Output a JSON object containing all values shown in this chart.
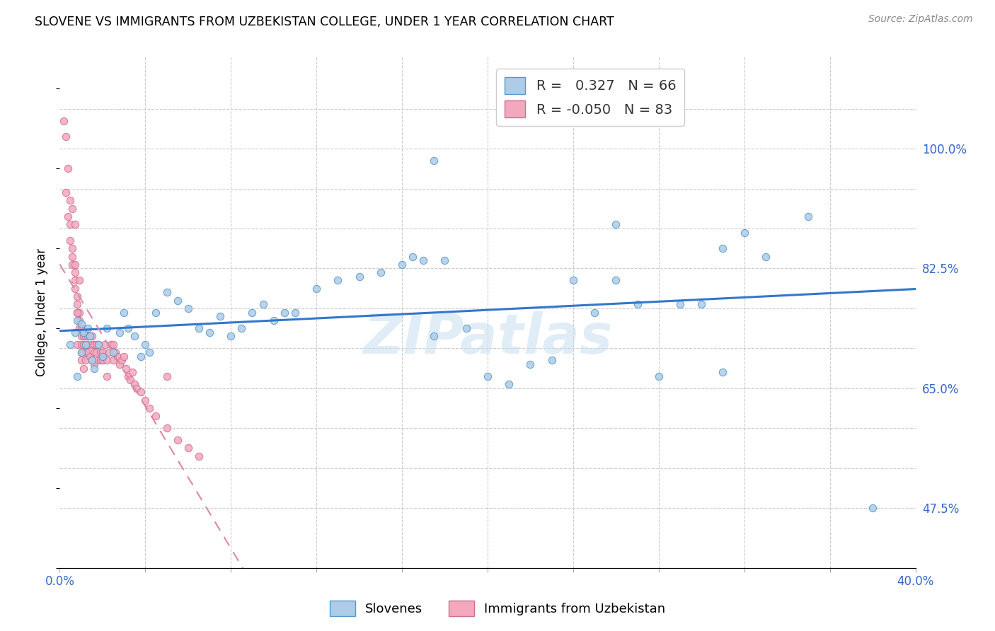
{
  "title": "SLOVENE VS IMMIGRANTS FROM UZBEKISTAN COLLEGE, UNDER 1 YEAR CORRELATION CHART",
  "source": "Source: ZipAtlas.com",
  "ylabel": "College, Under 1 year",
  "legend_label_1": "Slovenes",
  "legend_label_2": "Immigrants from Uzbekistan",
  "R1": 0.327,
  "N1": 66,
  "R2": -0.05,
  "N2": 83,
  "xmin": 0.0,
  "xmax": 0.4,
  "ymin": 0.4,
  "ymax": 1.04,
  "color_slovene": "#aecce8",
  "color_slovene_edge": "#5599cc",
  "color_uzbek": "#f4a8be",
  "color_uzbek_edge": "#cc7090",
  "color_line_slovene": "#3377cc",
  "color_line_uzbek": "#dd88aa",
  "watermark": "ZIPatlas",
  "slovene_x": [
    0.005,
    0.007,
    0.008,
    0.01,
    0.01,
    0.011,
    0.012,
    0.013,
    0.014,
    0.015,
    0.016,
    0.018,
    0.02,
    0.022,
    0.025,
    0.028,
    0.03,
    0.032,
    0.035,
    0.038,
    0.04,
    0.042,
    0.045,
    0.05,
    0.055,
    0.06,
    0.065,
    0.07,
    0.075,
    0.08,
    0.085,
    0.09,
    0.095,
    0.1,
    0.105,
    0.11,
    0.12,
    0.13,
    0.14,
    0.15,
    0.16,
    0.165,
    0.17,
    0.175,
    0.18,
    0.19,
    0.2,
    0.21,
    0.22,
    0.23,
    0.24,
    0.25,
    0.26,
    0.27,
    0.28,
    0.29,
    0.3,
    0.31,
    0.32,
    0.33,
    0.175,
    0.38,
    0.26,
    0.31,
    0.008,
    0.35
  ],
  "slovene_y": [
    0.68,
    0.695,
    0.71,
    0.67,
    0.705,
    0.695,
    0.68,
    0.7,
    0.69,
    0.66,
    0.65,
    0.68,
    0.665,
    0.7,
    0.67,
    0.695,
    0.72,
    0.7,
    0.69,
    0.665,
    0.68,
    0.67,
    0.72,
    0.745,
    0.735,
    0.725,
    0.7,
    0.695,
    0.715,
    0.69,
    0.7,
    0.72,
    0.73,
    0.71,
    0.72,
    0.72,
    0.75,
    0.76,
    0.765,
    0.77,
    0.78,
    0.79,
    0.785,
    0.91,
    0.785,
    0.7,
    0.64,
    0.63,
    0.655,
    0.66,
    0.76,
    0.72,
    0.76,
    0.73,
    0.64,
    0.73,
    0.73,
    0.8,
    0.82,
    0.79,
    0.69,
    0.475,
    0.83,
    0.645,
    0.64,
    0.84
  ],
  "uzbek_x": [
    0.002,
    0.003,
    0.003,
    0.004,
    0.004,
    0.005,
    0.005,
    0.005,
    0.006,
    0.006,
    0.006,
    0.006,
    0.007,
    0.007,
    0.007,
    0.007,
    0.008,
    0.008,
    0.008,
    0.008,
    0.009,
    0.009,
    0.009,
    0.01,
    0.01,
    0.01,
    0.01,
    0.01,
    0.011,
    0.011,
    0.011,
    0.012,
    0.012,
    0.012,
    0.013,
    0.013,
    0.013,
    0.014,
    0.014,
    0.015,
    0.015,
    0.015,
    0.016,
    0.016,
    0.016,
    0.017,
    0.017,
    0.018,
    0.018,
    0.019,
    0.019,
    0.02,
    0.02,
    0.021,
    0.022,
    0.022,
    0.023,
    0.024,
    0.025,
    0.025,
    0.026,
    0.027,
    0.028,
    0.029,
    0.03,
    0.031,
    0.032,
    0.033,
    0.034,
    0.035,
    0.036,
    0.038,
    0.04,
    0.042,
    0.045,
    0.05,
    0.055,
    0.06,
    0.065,
    0.007,
    0.008,
    0.05,
    0.009
  ],
  "uzbek_y": [
    0.96,
    0.94,
    0.87,
    0.9,
    0.84,
    0.86,
    0.83,
    0.81,
    0.8,
    0.79,
    0.78,
    0.85,
    0.76,
    0.75,
    0.77,
    0.83,
    0.74,
    0.73,
    0.72,
    0.68,
    0.71,
    0.7,
    0.72,
    0.7,
    0.69,
    0.68,
    0.67,
    0.66,
    0.69,
    0.68,
    0.65,
    0.67,
    0.66,
    0.69,
    0.69,
    0.68,
    0.67,
    0.665,
    0.69,
    0.68,
    0.66,
    0.69,
    0.67,
    0.655,
    0.68,
    0.68,
    0.67,
    0.66,
    0.68,
    0.66,
    0.67,
    0.66,
    0.67,
    0.68,
    0.66,
    0.64,
    0.67,
    0.68,
    0.66,
    0.68,
    0.67,
    0.665,
    0.655,
    0.66,
    0.665,
    0.65,
    0.64,
    0.635,
    0.645,
    0.63,
    0.625,
    0.62,
    0.61,
    0.6,
    0.59,
    0.575,
    0.56,
    0.55,
    0.54,
    0.78,
    0.72,
    0.64,
    0.76
  ]
}
